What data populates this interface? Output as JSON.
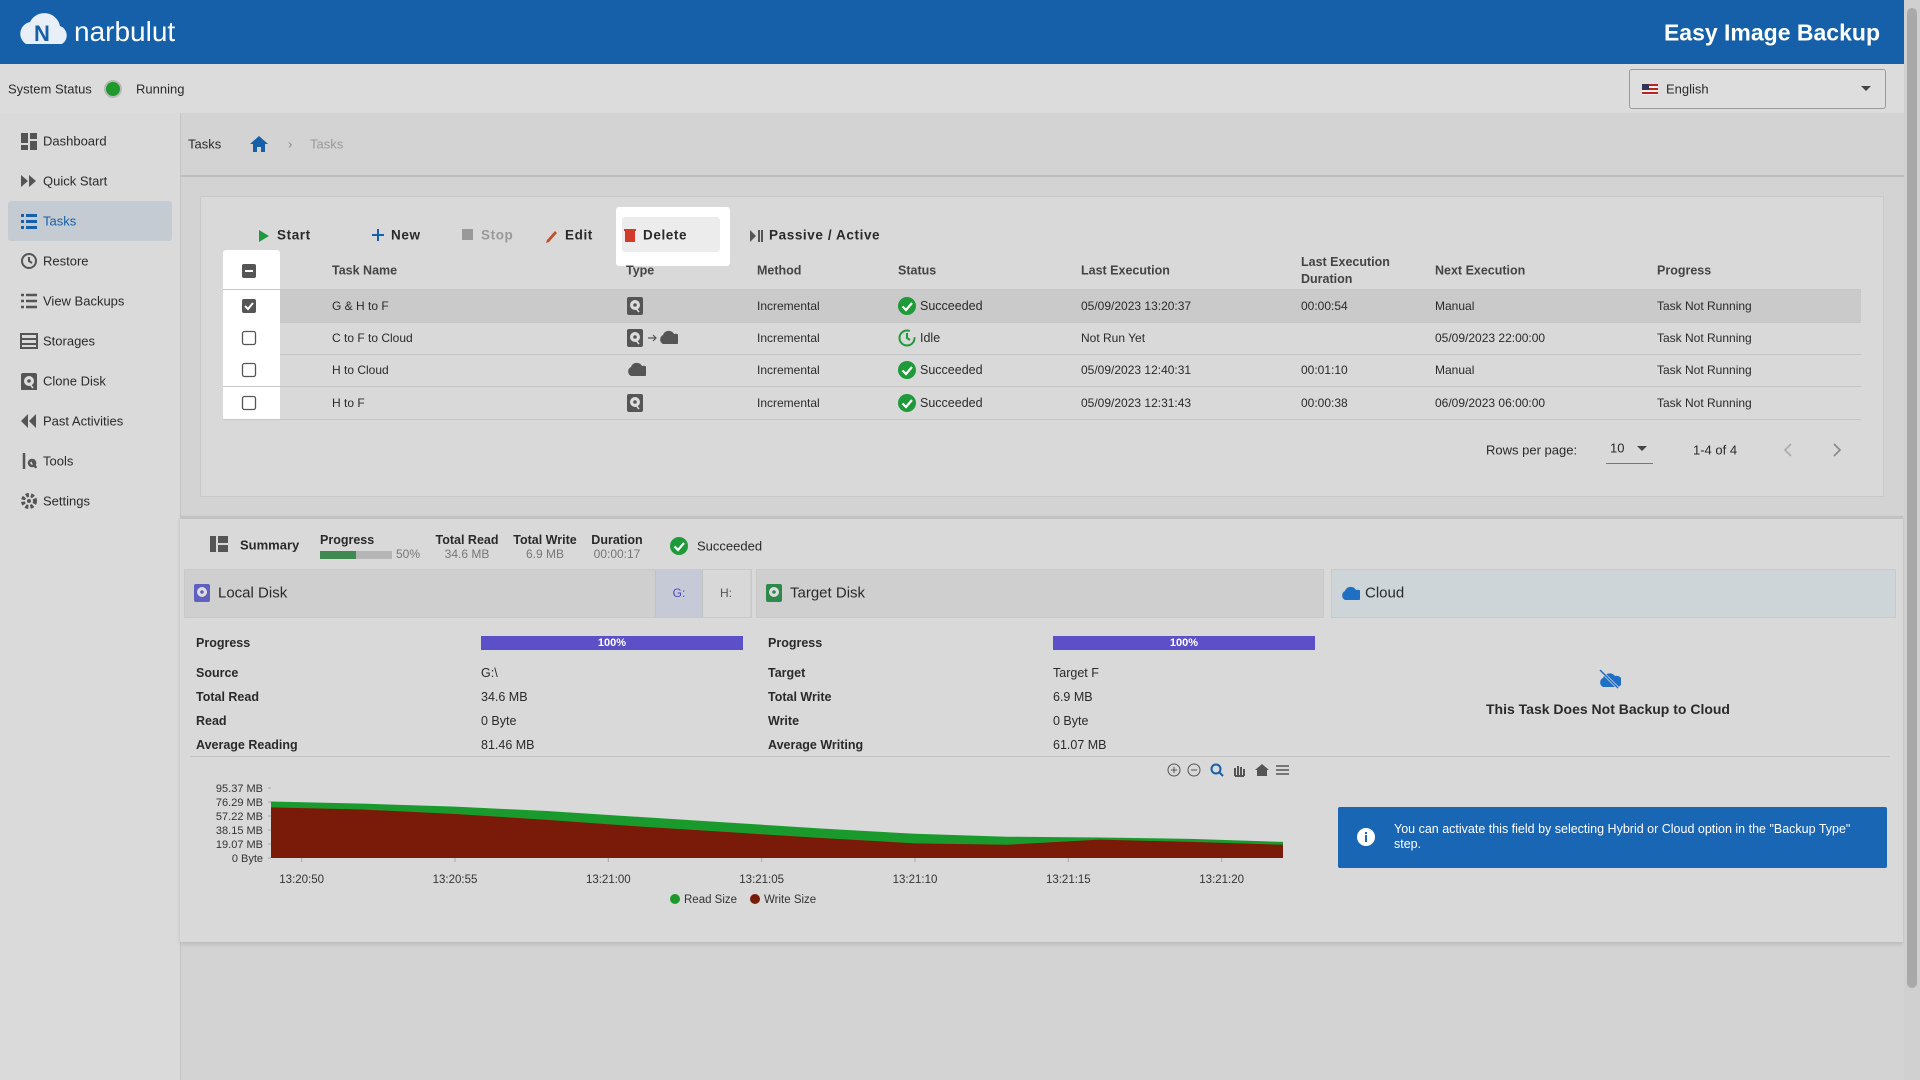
{
  "header": {
    "brand": "narbulut",
    "title": "Easy Image Backup"
  },
  "status": {
    "label": "System Status",
    "value": "Running",
    "language": "English"
  },
  "sidebar": {
    "items": [
      "Dashboard",
      "Quick Start",
      "Tasks",
      "Restore",
      "View Backups",
      "Storages",
      "Clone Disk",
      "Past Activities",
      "Tools",
      "Settings"
    ],
    "active": 2
  },
  "breadcrumb": {
    "page": "Tasks",
    "current": "Tasks"
  },
  "toolbar": {
    "buttons": [
      "Start",
      "New",
      "Stop",
      "Edit",
      "Delete",
      "Passive / Active"
    ],
    "disabled": [
      2
    ],
    "highlighted": 4
  },
  "table": {
    "columns": [
      "Task Name",
      "Type",
      "Method",
      "Status",
      "Last Execution",
      "Last Execution Duration",
      "Next Execution",
      "Progress"
    ],
    "rows": [
      {
        "name": "G & H to F",
        "type": [
          "disk"
        ],
        "method": "Incremental",
        "status": "Succeeded",
        "status_icon": "check",
        "last_execution": "05/09/2023 13:20:37",
        "duration": "00:00:54",
        "next_execution": "Manual",
        "progress": "Task Not Running",
        "checked": true
      },
      {
        "name": "C to F to Cloud",
        "type": [
          "disk",
          "cloud"
        ],
        "method": "Incremental",
        "status": "Idle",
        "status_icon": "clock",
        "last_execution": "Not Run Yet",
        "duration": null,
        "next_execution": "05/09/2023 22:00:00",
        "progress": "Task Not Running",
        "checked": false
      },
      {
        "name": "H to Cloud",
        "type": [
          "cloud"
        ],
        "method": "Incremental",
        "status": "Succeeded",
        "status_icon": "check",
        "last_execution": "05/09/2023 12:40:31",
        "duration": "00:01:10",
        "next_execution": "Manual",
        "progress": "Task Not Running",
        "checked": false
      },
      {
        "name": "H to F",
        "type": [
          "disk"
        ],
        "method": "Incremental",
        "status": "Succeeded",
        "status_icon": "check",
        "last_execution": "05/09/2023 12:31:43",
        "duration": "00:00:38",
        "next_execution": "06/09/2023 06:00:00",
        "progress": "Task Not Running",
        "checked": false
      }
    ]
  },
  "pagination": {
    "label": "Rows per page:",
    "per_page": "10",
    "range": "1-4 of 4"
  },
  "summary": {
    "title": "Summary",
    "progress": {
      "label": "Progress",
      "value": {
        "value": 50,
        "label": "50%"
      }
    },
    "total_read": {
      "label": "Total Read",
      "value": "34.6 MB"
    },
    "total_write": {
      "label": "Total Write",
      "value": "6.9 MB"
    },
    "duration": {
      "label": "Duration",
      "value": "00:00:17"
    },
    "status": "Succeeded",
    "local": {
      "title": "Local Disk",
      "tabs": [
        "G:",
        "H:"
      ],
      "active_tab": 0,
      "progress": {
        "label": "Progress",
        "value": {
          "value": 100,
          "label": "100%"
        }
      },
      "rows": [
        [
          "Source",
          "G:\\"
        ],
        [
          "Total Read",
          "34.6 MB"
        ],
        [
          "Read",
          "0 Byte"
        ],
        [
          "Average Reading",
          "81.46 MB"
        ]
      ]
    },
    "target": {
      "title": "Target Disk",
      "progress": {
        "label": "Progress",
        "value": {
          "value": 100,
          "label": "100%"
        }
      },
      "rows": [
        [
          "Target",
          "Target F"
        ],
        [
          "Total Write",
          "6.9 MB"
        ],
        [
          "Write",
          "0 Byte"
        ],
        [
          "Average Writing",
          "61.07 MB"
        ]
      ]
    },
    "cloud": {
      "title": "Cloud",
      "message": "This Task Does Not Backup to Cloud",
      "info": "You can activate this field by selecting Hybrid or Cloud option in the \"Backup Type\" step."
    },
    "chart": {
      "type": "area",
      "x": [
        "13:20:49",
        "13:20:52",
        "13:20:55",
        "13:20:58",
        "13:21:01",
        "13:21:04",
        "13:21:07",
        "13:21:10",
        "13:21:13",
        "13:21:16",
        "13:21:19",
        "13:21:22"
      ],
      "xlim": [
        "13:20:49",
        "13:21:22"
      ],
      "xticks": [
        "13:20:50",
        "13:20:55",
        "13:21:00",
        "13:21:05",
        "13:21:10",
        "13:21:15",
        "13:21:20"
      ],
      "ylim": [
        0,
        95.37
      ],
      "yticks": [
        {
          "value": 95.37,
          "label": "95.37 MB"
        },
        {
          "value": 76.29,
          "label": "76.29 MB"
        },
        {
          "value": 57.22,
          "label": "57.22 MB"
        },
        {
          "value": 38.15,
          "label": "38.15 MB"
        },
        {
          "value": 19.07,
          "label": "19.07 MB"
        },
        {
          "value": 0,
          "label": "0 Byte"
        }
      ],
      "series": [
        {
          "name": "Read Size",
          "color": "#1a9a2c",
          "values": [
            77,
            74,
            70,
            64,
            56,
            48,
            40,
            33,
            29,
            28,
            26,
            22
          ]
        },
        {
          "name": "Write Size",
          "color": "#7a1a08",
          "values": [
            69,
            66,
            60,
            52,
            43,
            35,
            27,
            20,
            18,
            25,
            22,
            18
          ]
        }
      ]
    }
  }
}
